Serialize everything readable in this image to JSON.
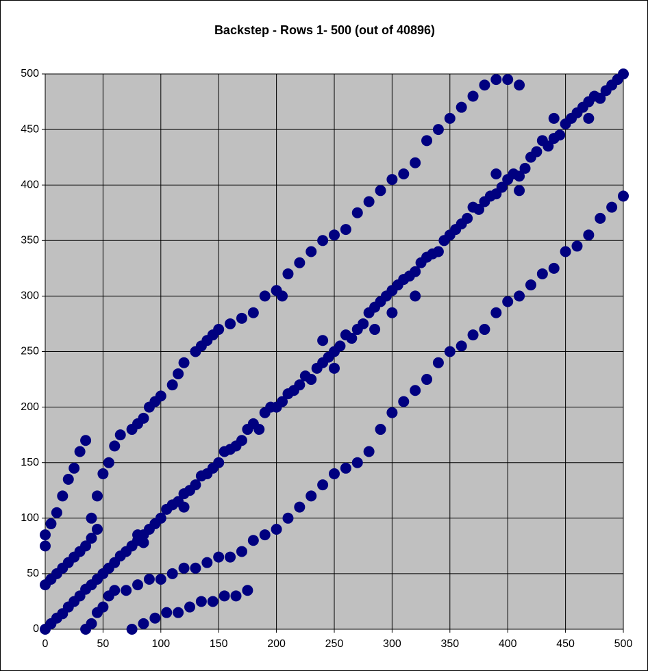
{
  "chart_data": {
    "type": "scatter",
    "title": "Backstep - Rows 1- 500 (out of 40896)",
    "color": "#000080",
    "background": "#c0c0c0",
    "grid": true,
    "xlim": [
      0,
      500
    ],
    "ylim": [
      0,
      500
    ],
    "xticks": [
      0,
      50,
      100,
      150,
      200,
      250,
      300,
      350,
      400,
      450,
      500
    ],
    "yticks": [
      0,
      50,
      100,
      150,
      200,
      250,
      300,
      350,
      400,
      450,
      500
    ],
    "x": [
      0,
      5,
      10,
      15,
      20,
      25,
      30,
      35,
      40,
      45,
      50,
      55,
      60,
      65,
      70,
      75,
      80,
      85,
      90,
      95,
      100,
      105,
      110,
      115,
      120,
      125,
      130,
      135,
      140,
      145,
      150,
      155,
      160,
      165,
      170,
      175,
      180,
      185,
      190,
      195,
      200,
      205,
      210,
      215,
      220,
      225,
      230,
      235,
      240,
      245,
      250,
      255,
      260,
      265,
      270,
      275,
      280,
      285,
      290,
      295,
      300,
      305,
      310,
      315,
      320,
      325,
      330,
      335,
      340,
      345,
      350,
      355,
      360,
      365,
      370,
      375,
      380,
      385,
      390,
      395,
      400,
      405,
      410,
      415,
      420,
      425,
      430,
      435,
      440,
      445,
      450,
      455,
      460,
      465,
      470,
      475,
      480,
      485,
      490,
      495,
      500,
      80,
      85,
      120,
      240,
      250,
      285,
      300,
      320,
      390,
      410,
      440,
      470,
      0,
      0,
      5,
      10,
      15,
      20,
      25,
      30,
      35,
      0,
      5,
      10,
      15,
      20,
      25,
      30,
      35,
      40,
      45,
      40,
      45,
      50,
      55,
      60,
      65,
      75,
      80,
      85,
      90,
      95,
      100,
      110,
      115,
      120,
      130,
      135,
      140,
      145,
      150,
      160,
      170,
      180,
      190,
      200,
      205,
      210,
      220,
      230,
      240,
      250,
      260,
      270,
      280,
      290,
      300,
      310,
      320,
      330,
      340,
      350,
      360,
      370,
      380,
      390,
      400,
      410,
      35,
      40,
      45,
      50,
      55,
      60,
      70,
      80,
      90,
      100,
      110,
      120,
      130,
      140,
      150,
      160,
      170,
      180,
      190,
      200,
      210,
      220,
      230,
      240,
      250,
      260,
      270,
      280,
      290,
      300,
      310,
      320,
      330,
      340,
      350,
      360,
      370,
      380,
      390,
      400,
      410,
      420,
      430,
      440,
      450,
      460,
      470,
      480,
      490,
      500,
      75,
      85,
      95,
      105,
      115,
      125,
      135,
      145,
      155,
      165,
      175
    ],
    "values": [
      0,
      5,
      10,
      14,
      20,
      25,
      30,
      36,
      40,
      45,
      50,
      55,
      60,
      66,
      70,
      75,
      80,
      85,
      90,
      95,
      100,
      108,
      112,
      115,
      122,
      125,
      130,
      138,
      140,
      145,
      150,
      160,
      162,
      165,
      170,
      180,
      185,
      180,
      195,
      200,
      200,
      205,
      212,
      215,
      220,
      228,
      225,
      235,
      240,
      245,
      250,
      255,
      265,
      262,
      270,
      275,
      285,
      290,
      295,
      300,
      305,
      310,
      315,
      318,
      322,
      330,
      335,
      338,
      340,
      350,
      355,
      360,
      365,
      370,
      380,
      378,
      385,
      390,
      392,
      398,
      405,
      410,
      408,
      415,
      425,
      430,
      440,
      435,
      442,
      445,
      455,
      460,
      465,
      470,
      475,
      480,
      478,
      485,
      490,
      495,
      500,
      85,
      78,
      110,
      260,
      235,
      270,
      285,
      300,
      410,
      395,
      460,
      460,
      75,
      85,
      95,
      105,
      120,
      135,
      145,
      160,
      170,
      40,
      45,
      50,
      55,
      60,
      65,
      70,
      75,
      82,
      90,
      100,
      120,
      140,
      150,
      165,
      175,
      180,
      185,
      190,
      200,
      205,
      210,
      220,
      230,
      240,
      250,
      255,
      260,
      265,
      270,
      275,
      280,
      285,
      300,
      305,
      300,
      320,
      330,
      340,
      350,
      355,
      360,
      375,
      385,
      395,
      405,
      410,
      420,
      440,
      450,
      460,
      470,
      480,
      490,
      495,
      495,
      490,
      0,
      5,
      15,
      20,
      30,
      35,
      35,
      40,
      45,
      45,
      50,
      55,
      55,
      60,
      65,
      65,
      70,
      80,
      85,
      90,
      100,
      110,
      120,
      130,
      140,
      145,
      150,
      160,
      180,
      195,
      205,
      215,
      225,
      240,
      250,
      255,
      265,
      270,
      285,
      295,
      300,
      310,
      320,
      325,
      340,
      345,
      355,
      370,
      380,
      390,
      0,
      5,
      10,
      15,
      15,
      20,
      25,
      25,
      30,
      30,
      35
    ]
  }
}
